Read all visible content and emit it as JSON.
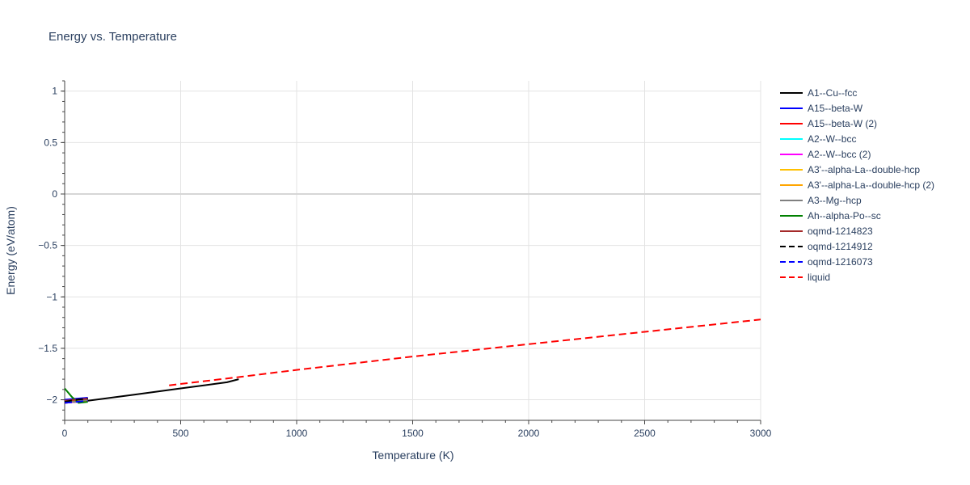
{
  "chart_data": {
    "type": "line",
    "title": "Energy vs. Temperature",
    "xlabel": "Temperature (K)",
    "ylabel": "Energy (eV/atom)",
    "xlim": [
      0,
      3000
    ],
    "ylim": [
      -2.2,
      1.1
    ],
    "xticks": [
      0,
      500,
      1000,
      1500,
      2000,
      2500,
      3000
    ],
    "yticks": [
      1,
      0.5,
      0,
      -0.5,
      -1,
      -1.5,
      -2
    ],
    "xtick_labels": [
      "0",
      "500",
      "1000",
      "1500",
      "2000",
      "2500",
      "3000"
    ],
    "ytick_labels": [
      "1",
      "0.5",
      "0",
      "−0.5",
      "−1",
      "−1.5",
      "−2"
    ],
    "grid": true,
    "legend_position": "right",
    "series": [
      {
        "name": "A1--Cu--fcc",
        "color": "#000000",
        "dash": "solid",
        "x": [
          0,
          100,
          200,
          300,
          400,
          500,
          600,
          700,
          750
        ],
        "y": [
          -2.03,
          -2.01,
          -1.98,
          -1.95,
          -1.92,
          -1.89,
          -1.86,
          -1.83,
          -1.8
        ]
      },
      {
        "name": "A15--beta-W",
        "color": "#0000ff",
        "dash": "solid",
        "x": [
          0,
          50,
          100
        ],
        "y": [
          -2.0,
          -1.99,
          -1.98
        ]
      },
      {
        "name": "A15--beta-W (2)",
        "color": "#ff0000",
        "dash": "solid",
        "x": [
          0,
          50,
          100
        ],
        "y": [
          -2.01,
          -2.0,
          -1.99
        ]
      },
      {
        "name": "A2--W--bcc",
        "color": "#00ffff",
        "dash": "solid",
        "x": [
          0,
          50,
          100
        ],
        "y": [
          -2.02,
          -2.01,
          -2.0
        ]
      },
      {
        "name": "A2--W--bcc (2)",
        "color": "#ff00ff",
        "dash": "solid",
        "x": [
          0,
          50,
          100
        ],
        "y": [
          -2.03,
          -2.02,
          -2.0
        ]
      },
      {
        "name": "A3'--alpha-La--double-hcp",
        "color": "#ffc000",
        "dash": "solid",
        "x": [
          0,
          50,
          100
        ],
        "y": [
          -2.02,
          -2.01,
          -2.0
        ]
      },
      {
        "name": "A3'--alpha-La--double-hcp (2)",
        "color": "#ffa500",
        "dash": "solid",
        "x": [
          0,
          50,
          100
        ],
        "y": [
          -2.02,
          -2.015,
          -2.005
        ]
      },
      {
        "name": "A3--Mg--hcp",
        "color": "#808080",
        "dash": "solid",
        "x": [
          0,
          50,
          100
        ],
        "y": [
          -2.02,
          -2.02,
          -2.0
        ]
      },
      {
        "name": "Ah--alpha-Po--sc",
        "color": "#008000",
        "dash": "solid",
        "x": [
          0,
          30,
          60,
          100
        ],
        "y": [
          -1.89,
          -1.97,
          -2.03,
          -2.02
        ]
      },
      {
        "name": "oqmd-1214823",
        "color": "#a52a2a",
        "dash": "solid",
        "x": [
          0,
          50,
          100
        ],
        "y": [
          -2.01,
          -2.0,
          -1.99
        ]
      },
      {
        "name": "oqmd-1214912",
        "color": "#000000",
        "dash": "dash",
        "x": [
          0,
          50,
          100
        ],
        "y": [
          -2.02,
          -2.0,
          -1.99
        ]
      },
      {
        "name": "oqmd-1216073",
        "color": "#0000ff",
        "dash": "dash",
        "x": [
          0,
          50,
          100
        ],
        "y": [
          -2.03,
          -2.02,
          -2.01
        ]
      },
      {
        "name": "liquid",
        "color": "#ff0000",
        "dash": "dash",
        "x": [
          450,
          750,
          1000,
          1500,
          2000,
          2500,
          3000
        ],
        "y": [
          -1.86,
          -1.78,
          -1.71,
          -1.58,
          -1.46,
          -1.34,
          -1.22
        ]
      }
    ]
  }
}
